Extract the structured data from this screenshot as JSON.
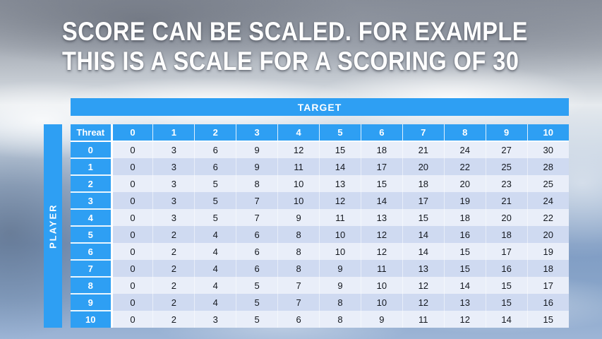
{
  "slide": {
    "title": {
      "line1": "SCORE CAN BE SCALED. FOR EXAMPLE",
      "line2": "THIS IS A SCALE FOR A SCORING OF 30"
    }
  },
  "table": {
    "target_label": "TARGET",
    "player_label": "PLAYER",
    "corner_label": "Threat",
    "col_headers": [
      "0",
      "1",
      "2",
      "3",
      "4",
      "5",
      "6",
      "7",
      "8",
      "9",
      "10"
    ],
    "rows": [
      {
        "label": "0",
        "values": [
          0,
          3,
          6,
          9,
          12,
          15,
          18,
          21,
          24,
          27,
          30
        ]
      },
      {
        "label": "1",
        "values": [
          0,
          3,
          6,
          9,
          11,
          14,
          17,
          20,
          22,
          25,
          28
        ]
      },
      {
        "label": "2",
        "values": [
          0,
          3,
          5,
          8,
          10,
          13,
          15,
          18,
          20,
          23,
          25
        ]
      },
      {
        "label": "3",
        "values": [
          0,
          3,
          5,
          7,
          10,
          12,
          14,
          17,
          19,
          21,
          24
        ]
      },
      {
        "label": "4",
        "values": [
          0,
          3,
          5,
          7,
          9,
          11,
          13,
          15,
          18,
          20,
          22
        ]
      },
      {
        "label": "5",
        "values": [
          0,
          2,
          4,
          6,
          8,
          10,
          12,
          14,
          16,
          18,
          20
        ]
      },
      {
        "label": "6",
        "values": [
          0,
          2,
          4,
          6,
          8,
          10,
          12,
          14,
          15,
          17,
          19
        ]
      },
      {
        "label": "7",
        "values": [
          0,
          2,
          4,
          6,
          8,
          9,
          11,
          13,
          15,
          16,
          18
        ]
      },
      {
        "label": "8",
        "values": [
          0,
          2,
          4,
          5,
          7,
          9,
          10,
          12,
          14,
          15,
          17
        ]
      },
      {
        "label": "9",
        "values": [
          0,
          2,
          4,
          5,
          7,
          8,
          10,
          12,
          13,
          15,
          16
        ]
      },
      {
        "label": "10",
        "values": [
          0,
          2,
          3,
          5,
          6,
          8,
          9,
          11,
          12,
          14,
          15
        ]
      }
    ]
  },
  "colors": {
    "accent_blue": "#2E9FF3",
    "band_light": "#E9EEF9",
    "band_dark": "#CFDAF1",
    "header_text": "#FFFFFF",
    "cell_text": "#14181F"
  }
}
